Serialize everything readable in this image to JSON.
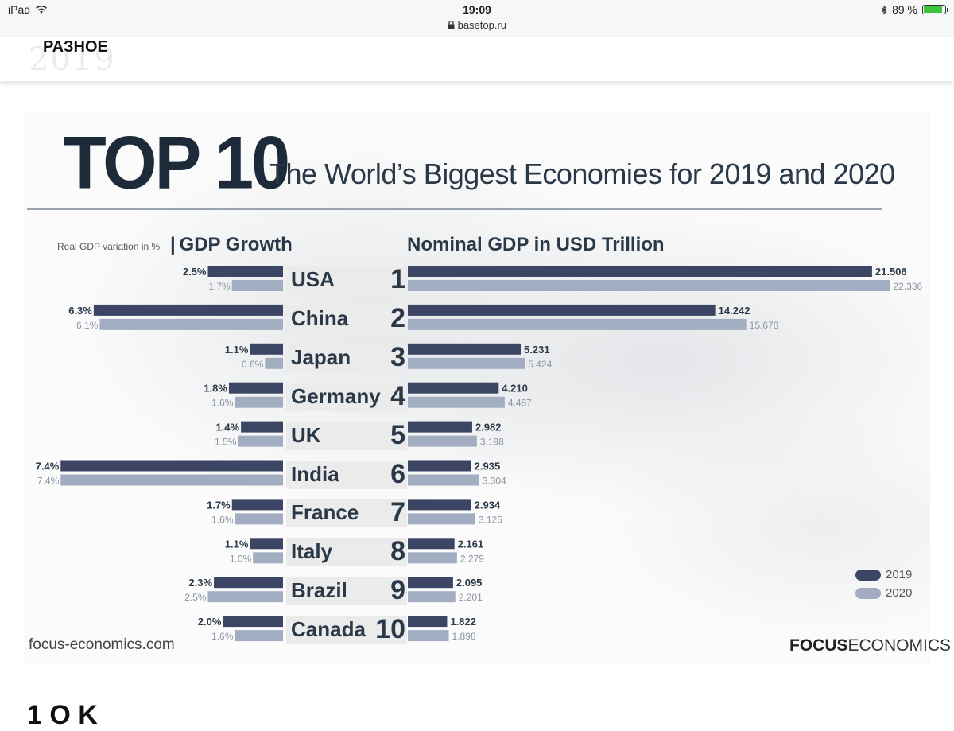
{
  "status_bar": {
    "device": "iPad",
    "time": "19:09",
    "url": "basetop.ru",
    "battery": "89 %",
    "battery_level": 0.89
  },
  "site": {
    "section": "РАЗНОЕ",
    "ghost_year": "2019",
    "bottom_text": "1 O  K"
  },
  "colors": {
    "y2019": "#3c4564",
    "y2020": "#a2adc2",
    "title": "#1c2a3a"
  },
  "chart_data": {
    "type": "bar",
    "title_big": "TOP 10",
    "title": "The World’s Biggest Economies for 2019 and 2020",
    "left_label_small": "Real GDP variation in %",
    "left_label": "GDP Growth",
    "right_label": "Nominal GDP in USD Trillion",
    "categories": [
      "USA",
      "China",
      "Japan",
      "Germany",
      "UK",
      "India",
      "France",
      "Italy",
      "Brazil",
      "Canada"
    ],
    "ranks": [
      "1",
      "2",
      "3",
      "4",
      "5",
      "6",
      "7",
      "8",
      "9",
      "10"
    ],
    "growth": {
      "series": [
        {
          "name": "2019",
          "values": [
            2.5,
            6.3,
            1.1,
            1.8,
            1.4,
            7.4,
            1.7,
            1.1,
            2.3,
            2.0
          ],
          "labels": [
            "2.5%",
            "6.3%",
            "1.1%",
            "1.8%",
            "1.4%",
            "7.4%",
            "1.7%",
            "1.1%",
            "2.3%",
            "2.0%"
          ]
        },
        {
          "name": "2020",
          "values": [
            1.7,
            6.1,
            0.6,
            1.6,
            1.5,
            7.4,
            1.6,
            1.0,
            2.5,
            1.6
          ],
          "labels": [
            "1.7%",
            "6.1%",
            "0.6%",
            "1.6%",
            "1.5%",
            "7.4%",
            "1.6%",
            "1.0%",
            "2.5%",
            "1.6%"
          ]
        }
      ]
    },
    "gdp": {
      "series": [
        {
          "name": "2019",
          "values": [
            21.506,
            14.242,
            5.231,
            4.21,
            2.982,
            2.935,
            2.934,
            2.161,
            2.095,
            1.822
          ],
          "labels": [
            "21.506",
            "14.242",
            "5.231",
            "4.210",
            "2.982",
            "2.935",
            "2.934",
            "2.161",
            "2.095",
            "1.822"
          ]
        },
        {
          "name": "2020",
          "values": [
            22.336,
            15.678,
            5.424,
            4.487,
            3.198,
            3.304,
            3.125,
            2.279,
            2.201,
            1.898
          ],
          "labels": [
            "22.336",
            "15.678",
            "5.424",
            "4.487",
            "3.198",
            "3.304",
            "3.125",
            "2.279",
            "2.201",
            "1.898"
          ]
        }
      ]
    },
    "legend": [
      "2019",
      "2020"
    ],
    "source": "focus-economics.com",
    "brand_bold": "FOCUS",
    "brand_rest": "ECONOMICS"
  }
}
